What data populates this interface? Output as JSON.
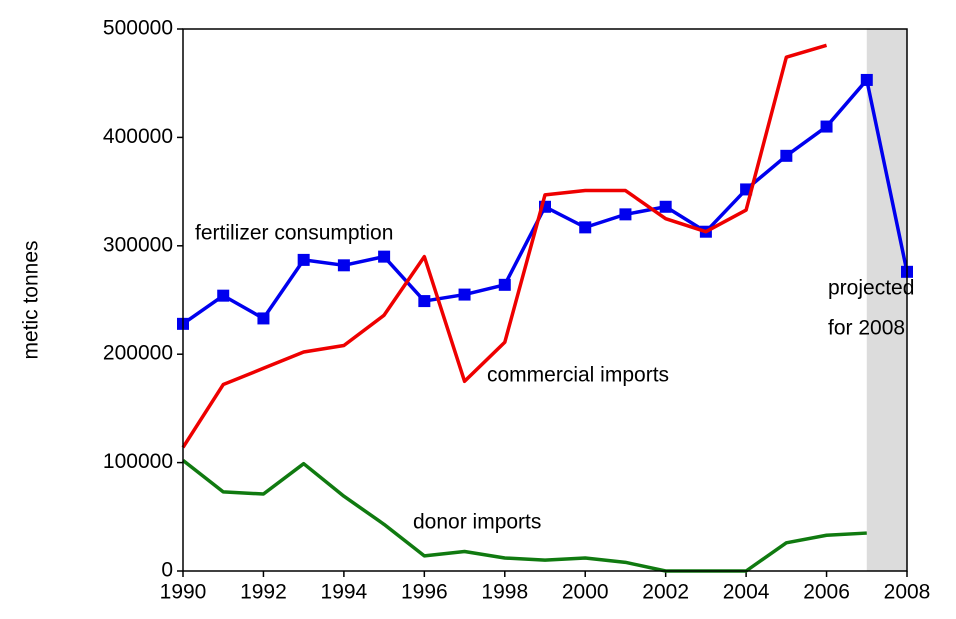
{
  "chart_data": {
    "type": "line",
    "y_label": "metic tonnes",
    "x": [
      1990,
      1991,
      1992,
      1993,
      1994,
      1995,
      1996,
      1997,
      1998,
      1999,
      2000,
      2001,
      2002,
      2003,
      2004,
      2005,
      2006,
      2007,
      2008
    ],
    "xlim": [
      1990,
      2008
    ],
    "xticks": [
      1990,
      1992,
      1994,
      1996,
      1998,
      2000,
      2002,
      2004,
      2006,
      2008
    ],
    "ylim": [
      0,
      500000
    ],
    "yticks": [
      0,
      100000,
      200000,
      300000,
      400000,
      500000
    ],
    "shade": [
      2007,
      2008
    ],
    "shade_color": "#dcdcdc",
    "series": [
      {
        "name": "fertilizer consumption",
        "color": "#0000ee",
        "marker": "square",
        "values": [
          228000,
          254000,
          233000,
          287000,
          282000,
          290000,
          249000,
          255000,
          264000,
          336000,
          317000,
          329000,
          336000,
          313000,
          352000,
          383000,
          410000,
          453000,
          276000
        ]
      },
      {
        "name": "commercial imports",
        "color": "#ee0000",
        "marker": null,
        "values": [
          114000,
          172000,
          187000,
          202000,
          208000,
          236000,
          290000,
          175000,
          211000,
          347000,
          351000,
          351000,
          325000,
          313000,
          333000,
          474000,
          485000,
          null,
          null
        ]
      },
      {
        "name": "donor imports",
        "color": "#107a10",
        "marker": null,
        "values": [
          102000,
          73000,
          71000,
          99000,
          69000,
          43000,
          14000,
          18000,
          12000,
          10000,
          12000,
          8000,
          0,
          0,
          0,
          26000,
          33000,
          35000,
          null
        ]
      }
    ],
    "annotations": [
      [
        "projected",
        "for 2008"
      ]
    ]
  }
}
